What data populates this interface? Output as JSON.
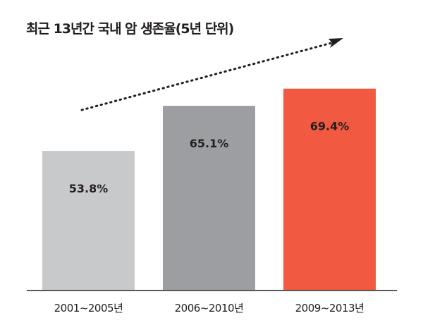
{
  "chart_data": {
    "type": "bar",
    "title": "최근 13년간 국내 암 생존율(5년 단위)",
    "categories": [
      "2001~2005년",
      "2006~2010년",
      "2009~2013년"
    ],
    "values": [
      53.8,
      65.1,
      69.4
    ],
    "data_labels": [
      "53.8%",
      "65.1%",
      "69.4%"
    ],
    "colors": [
      "#c8c9cb",
      "#9d9ea1",
      "#f15a40"
    ],
    "ylim": [
      19,
      72
    ],
    "grid": false,
    "legend": "none",
    "annotation": "dotted upward trend arrow"
  }
}
